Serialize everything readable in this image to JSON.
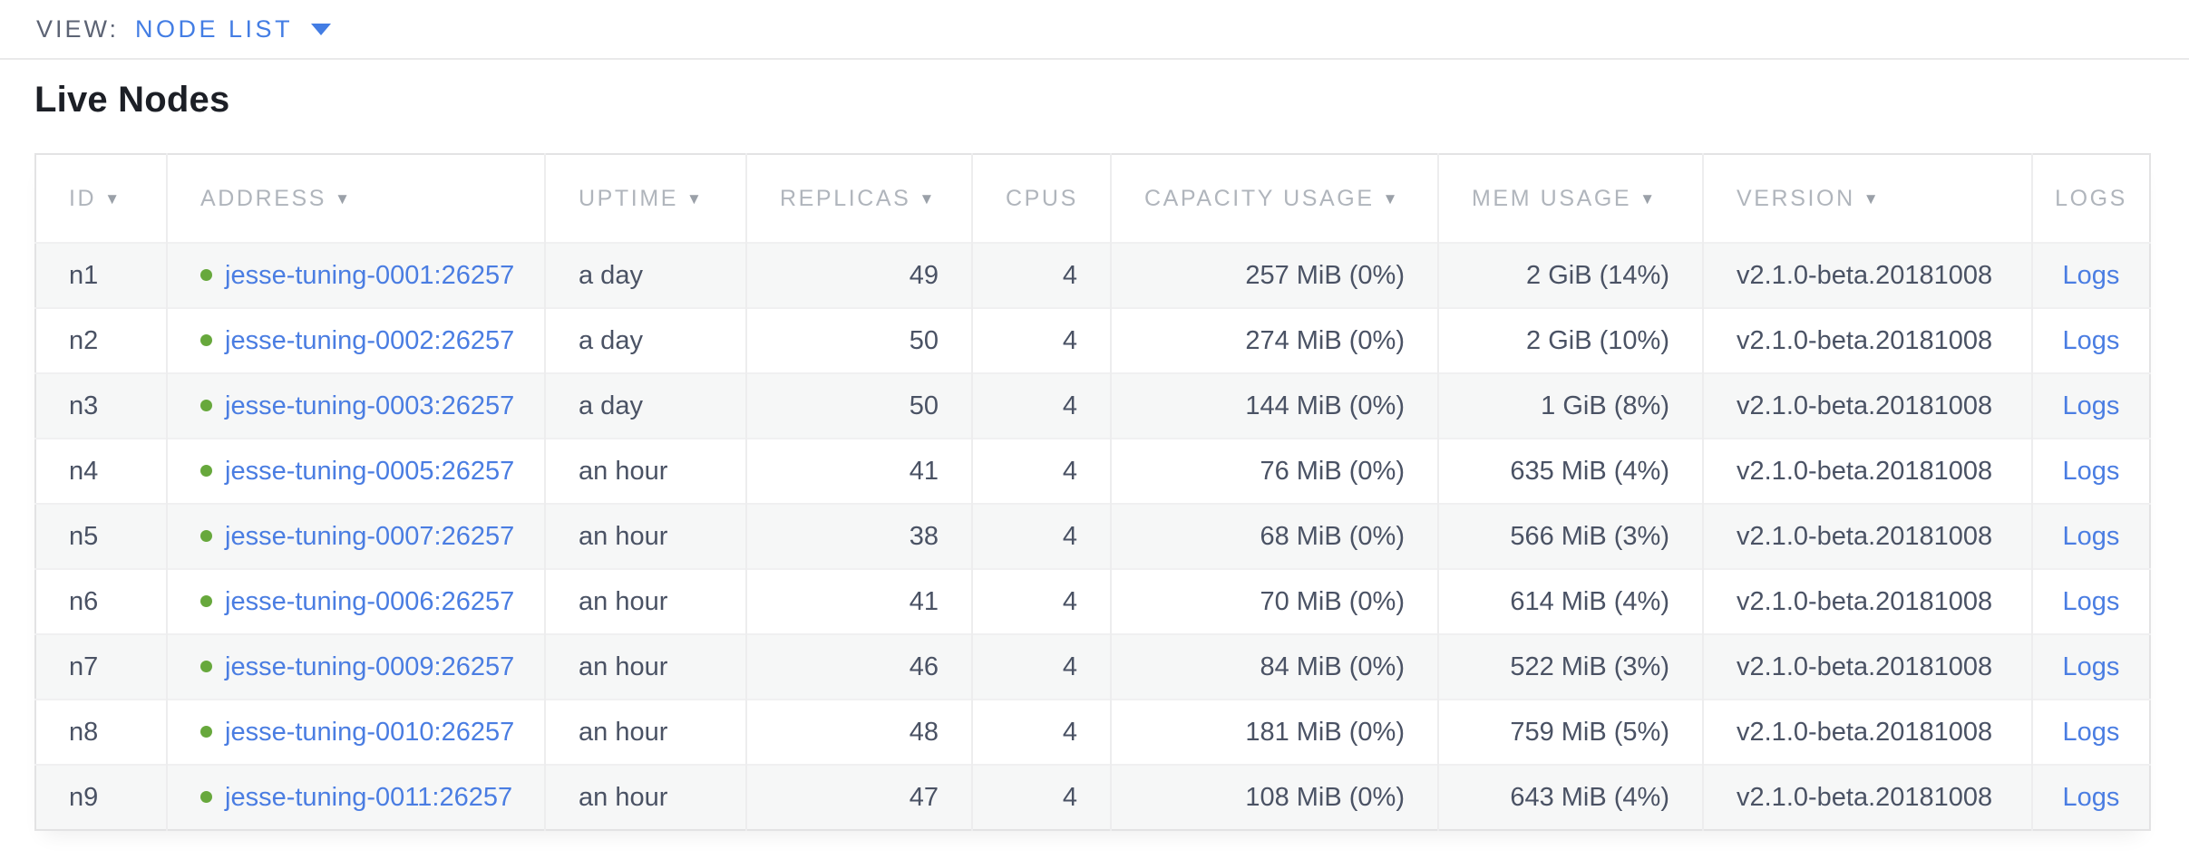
{
  "view_bar": {
    "label": "VIEW:",
    "selected": "NODE LIST"
  },
  "page_title": "Live Nodes",
  "colors": {
    "accent_blue": "#437de4",
    "link_blue": "#4a7de2",
    "status_green": "#67a83c",
    "header_gray": "#b0b5bc",
    "row_alt_bg": "#f6f7f7",
    "body_text": "#4a5264"
  },
  "table": {
    "columns": [
      {
        "key": "id",
        "label": "ID",
        "sortable": true,
        "align": "left"
      },
      {
        "key": "address",
        "label": "ADDRESS",
        "sortable": true,
        "align": "left"
      },
      {
        "key": "uptime",
        "label": "UPTIME",
        "sortable": true,
        "align": "left"
      },
      {
        "key": "replicas",
        "label": "REPLICAS",
        "sortable": true,
        "align": "right"
      },
      {
        "key": "cpus",
        "label": "CPUS",
        "sortable": false,
        "align": "right"
      },
      {
        "key": "capacity",
        "label": "CAPACITY USAGE",
        "sortable": true,
        "align": "right"
      },
      {
        "key": "mem",
        "label": "MEM USAGE",
        "sortable": true,
        "align": "right"
      },
      {
        "key": "version",
        "label": "VERSION",
        "sortable": true,
        "align": "left"
      },
      {
        "key": "logs",
        "label": "LOGS",
        "sortable": false,
        "align": "center"
      }
    ],
    "rows": [
      {
        "id": "n1",
        "status": "live",
        "address": "jesse-tuning-0001:26257",
        "uptime": "a day",
        "replicas": "49",
        "cpus": "4",
        "capacity": "257 MiB (0%)",
        "mem": "2 GiB (14%)",
        "version": "v2.1.0-beta.20181008",
        "logs": "Logs"
      },
      {
        "id": "n2",
        "status": "live",
        "address": "jesse-tuning-0002:26257",
        "uptime": "a day",
        "replicas": "50",
        "cpus": "4",
        "capacity": "274 MiB (0%)",
        "mem": "2 GiB (10%)",
        "version": "v2.1.0-beta.20181008",
        "logs": "Logs"
      },
      {
        "id": "n3",
        "status": "live",
        "address": "jesse-tuning-0003:26257",
        "uptime": "a day",
        "replicas": "50",
        "cpus": "4",
        "capacity": "144 MiB (0%)",
        "mem": "1 GiB (8%)",
        "version": "v2.1.0-beta.20181008",
        "logs": "Logs"
      },
      {
        "id": "n4",
        "status": "live",
        "address": "jesse-tuning-0005:26257",
        "uptime": "an hour",
        "replicas": "41",
        "cpus": "4",
        "capacity": "76 MiB (0%)",
        "mem": "635 MiB (4%)",
        "version": "v2.1.0-beta.20181008",
        "logs": "Logs"
      },
      {
        "id": "n5",
        "status": "live",
        "address": "jesse-tuning-0007:26257",
        "uptime": "an hour",
        "replicas": "38",
        "cpus": "4",
        "capacity": "68 MiB (0%)",
        "mem": "566 MiB (3%)",
        "version": "v2.1.0-beta.20181008",
        "logs": "Logs"
      },
      {
        "id": "n6",
        "status": "live",
        "address": "jesse-tuning-0006:26257",
        "uptime": "an hour",
        "replicas": "41",
        "cpus": "4",
        "capacity": "70 MiB (0%)",
        "mem": "614 MiB (4%)",
        "version": "v2.1.0-beta.20181008",
        "logs": "Logs"
      },
      {
        "id": "n7",
        "status": "live",
        "address": "jesse-tuning-0009:26257",
        "uptime": "an hour",
        "replicas": "46",
        "cpus": "4",
        "capacity": "84 MiB (0%)",
        "mem": "522 MiB (3%)",
        "version": "v2.1.0-beta.20181008",
        "logs": "Logs"
      },
      {
        "id": "n8",
        "status": "live",
        "address": "jesse-tuning-0010:26257",
        "uptime": "an hour",
        "replicas": "48",
        "cpus": "4",
        "capacity": "181 MiB (0%)",
        "mem": "759 MiB (5%)",
        "version": "v2.1.0-beta.20181008",
        "logs": "Logs"
      },
      {
        "id": "n9",
        "status": "live",
        "address": "jesse-tuning-0011:26257",
        "uptime": "an hour",
        "replicas": "47",
        "cpus": "4",
        "capacity": "108 MiB (0%)",
        "mem": "643 MiB (4%)",
        "version": "v2.1.0-beta.20181008",
        "logs": "Logs"
      }
    ]
  }
}
